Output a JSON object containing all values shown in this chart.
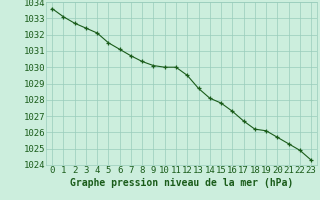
{
  "x": [
    0,
    1,
    2,
    3,
    4,
    5,
    6,
    7,
    8,
    9,
    10,
    11,
    12,
    13,
    14,
    15,
    16,
    17,
    18,
    19,
    20,
    21,
    22,
    23
  ],
  "y": [
    1033.6,
    1033.1,
    1032.7,
    1032.4,
    1032.1,
    1031.5,
    1031.1,
    1030.7,
    1030.35,
    1030.1,
    1030.0,
    1030.0,
    1029.5,
    1028.7,
    1028.1,
    1027.8,
    1027.3,
    1026.7,
    1026.2,
    1026.1,
    1025.7,
    1025.3,
    1024.9,
    1024.3
  ],
  "ylim": [
    1024,
    1034
  ],
  "yticks": [
    1024,
    1025,
    1026,
    1027,
    1028,
    1029,
    1030,
    1031,
    1032,
    1033,
    1034
  ],
  "xticks": [
    0,
    1,
    2,
    3,
    4,
    5,
    6,
    7,
    8,
    9,
    10,
    11,
    12,
    13,
    14,
    15,
    16,
    17,
    18,
    19,
    20,
    21,
    22,
    23
  ],
  "xlabel": "Graphe pression niveau de la mer (hPa)",
  "line_color": "#1a5c1a",
  "marker": "+",
  "marker_size": 3,
  "bg_color": "#cceedd",
  "grid_color": "#99ccbb",
  "tick_label_color": "#1a5c1a",
  "xlabel_color": "#1a5c1a",
  "xlabel_fontsize": 7,
  "tick_fontsize": 6.5
}
